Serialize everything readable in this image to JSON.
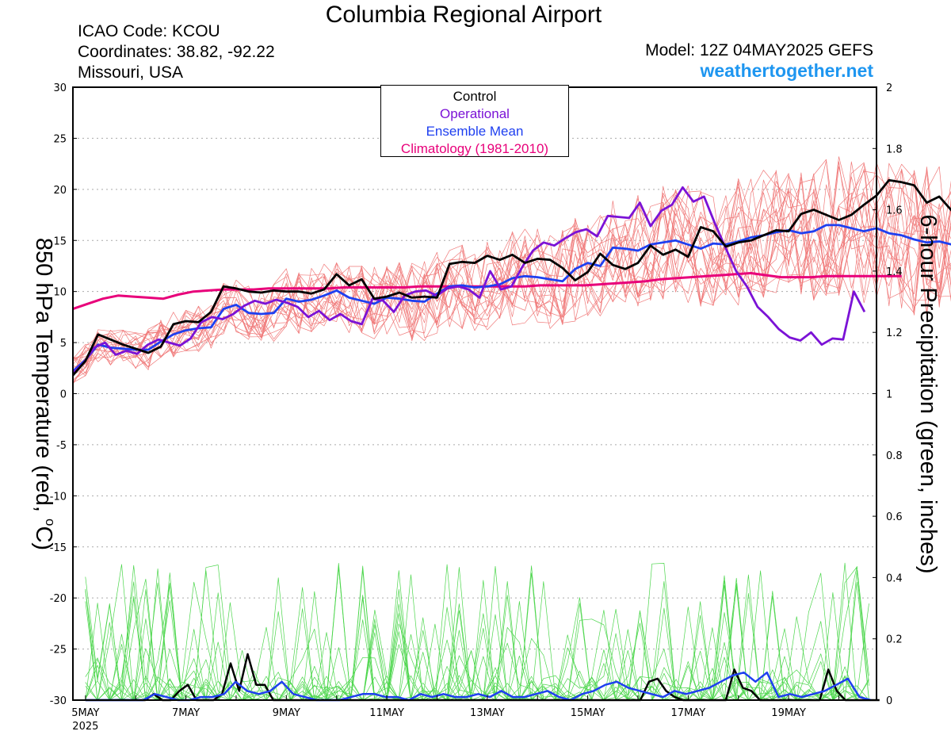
{
  "header": {
    "title": "Columbia Regional Airport",
    "icao": "ICAO Code: KCOU",
    "coords": "Coordinates: 38.82, -92.22",
    "region": "Missouri, USA",
    "model": "Model: 12Z 04MAY2025 GEFS",
    "site": "weathertogether.net"
  },
  "colors": {
    "control": "#000000",
    "operational": "#7b12d6",
    "ensemble_mean": "#1e3ff0",
    "climatology": "#e8007a",
    "members_temp": "#f07a7a",
    "members_precip": "#4cd64c",
    "site": "#1e96f0"
  },
  "chart_data": {
    "type": "line",
    "ylabel_left_prefix": "850 hPa Temperature (red, ",
    "ylabel_left_unit": "C)",
    "ylabel_left_deg": "o",
    "ylabel_right": "6-hour Precipitation (green, inches)",
    "ylim_left": [
      -30,
      30
    ],
    "ylim_right": [
      0,
      2
    ],
    "yticks_left": [
      "30",
      "25",
      "20",
      "15",
      "10",
      "5",
      "0",
      "-5",
      "-10",
      "-15",
      "-20",
      "-25",
      "-30"
    ],
    "yticks_right": [
      "2",
      "1.8",
      "1.6",
      "1.4",
      "1.2",
      "1",
      "0.8",
      "0.6",
      "0.4",
      "0.2",
      "0"
    ],
    "xlim_days": [
      4.75,
      20.75
    ],
    "xticks": [
      {
        "day": 5,
        "label": "5MAY",
        "sub": "2025"
      },
      {
        "day": 7,
        "label": "7MAY",
        "sub": ""
      },
      {
        "day": 9,
        "label": "9MAY",
        "sub": ""
      },
      {
        "day": 11,
        "label": "11MAY",
        "sub": ""
      },
      {
        "day": 13,
        "label": "13MAY",
        "sub": ""
      },
      {
        "day": 15,
        "label": "15MAY",
        "sub": ""
      },
      {
        "day": 17,
        "label": "17MAY",
        "sub": ""
      },
      {
        "day": 19,
        "label": "19MAY",
        "sub": ""
      }
    ],
    "legend": [
      {
        "name": "Control",
        "color": "#000000"
      },
      {
        "name": "Operational",
        "color": "#7b12d6"
      },
      {
        "name": "Ensemble Mean",
        "color": "#1e3ff0"
      },
      {
        "name": "Climatology (1981-2010)",
        "color": "#e8007a"
      }
    ],
    "x_start_day": 4.75,
    "x_step_days": 0.25,
    "temperature": {
      "control": [
        1.8,
        3.2,
        5.8,
        5.3,
        4.8,
        4.4,
        4.0,
        4.6,
        6.8,
        7.1,
        7.0,
        8.0,
        10.5,
        10.3,
        10.0,
        9.9,
        10.1,
        10.0,
        10.0,
        9.8,
        10.2,
        11.7,
        10.6,
        11.2,
        9.3,
        9.5,
        9.9,
        9.4,
        9.5,
        9.4,
        12.7,
        12.9,
        12.8,
        13.5,
        13.1,
        13.6,
        12.8,
        13.2,
        13.1,
        12.3,
        11.1,
        11.9,
        13.7,
        12.6,
        12.2,
        12.8,
        14.5,
        13.6,
        14.1,
        13.4,
        16.3,
        15.9,
        14.4,
        14.8,
        15.0,
        15.5,
        16.0,
        15.9,
        17.6,
        18.0,
        17.5,
        17.0,
        17.5,
        18.5,
        19.4,
        20.9,
        20.7,
        20.4,
        18.7,
        19.3,
        17.9
      ],
      "operational": [
        2.0,
        3.0,
        4.5,
        5.0,
        3.8,
        4.2,
        3.9,
        4.8,
        5.3,
        5.0,
        4.7,
        5.4,
        7.0,
        7.5,
        7.3,
        7.8,
        8.6,
        9.1,
        8.8,
        9.2,
        8.9,
        8.5,
        7.5,
        8.1,
        7.2,
        7.8,
        7.1,
        6.8,
        9.3,
        9.1,
        8.0,
        9.6,
        10.0,
        10.1,
        9.6,
        10.3,
        10.5,
        10.2,
        9.4,
        12.0,
        10.2,
        10.5,
        12.4,
        14.0,
        14.8,
        14.5,
        15.2,
        15.8,
        16.1,
        15.4,
        17.4,
        17.3,
        17.2,
        18.7,
        16.4,
        17.9,
        18.5,
        20.2,
        18.8,
        19.3,
        16.7,
        14.3,
        12.0,
        10.5,
        8.5,
        7.5,
        6.3,
        5.5,
        5.2,
        6.0,
        4.8,
        5.4,
        5.3,
        10.0,
        8.0
      ],
      "ensemble_mean": [
        2.2,
        3.3,
        4.8,
        4.5,
        4.4,
        4.3,
        4.3,
        5.1,
        5.8,
        6.2,
        6.4,
        6.5,
        8.3,
        8.7,
        7.9,
        7.8,
        7.9,
        9.3,
        9.0,
        9.2,
        9.6,
        10.1,
        9.4,
        9.1,
        8.8,
        9.4,
        9.3,
        9.1,
        9.0,
        9.8,
        10.5,
        10.6,
        10.4,
        10.5,
        10.7,
        11.3,
        11.5,
        11.4,
        11.2,
        11.0,
        12.2,
        12.8,
        12.5,
        14.3,
        14.2,
        14.0,
        14.6,
        14.8,
        15.0,
        14.6,
        14.2,
        14.7,
        14.6,
        14.9,
        15.3,
        15.5,
        15.8,
        16.0,
        15.7,
        15.9,
        16.5,
        16.5,
        16.2,
        15.9,
        16.2,
        15.7,
        15.5,
        15.1,
        14.8,
        14.9,
        14.6
      ],
      "climatology": [
        8.3,
        8.8,
        9.3,
        9.6,
        9.5,
        9.4,
        9.3,
        9.7,
        10.0,
        10.1,
        10.2,
        10.2,
        10.2,
        10.3,
        10.3,
        10.3,
        10.3,
        10.3,
        10.4,
        10.4,
        10.4,
        10.4,
        10.4,
        10.5,
        10.5,
        10.5,
        10.5,
        10.5,
        10.5,
        10.5,
        10.5,
        10.6,
        10.6,
        10.6,
        10.6,
        10.7,
        10.8,
        10.9,
        11.0,
        11.2,
        11.3,
        11.4,
        11.5,
        11.6,
        11.7,
        11.8,
        11.6,
        11.4,
        11.4,
        11.4,
        11.5,
        11.5,
        11.5,
        11.5,
        11.5,
        11.5
      ],
      "climatology_step_days": 0.3
    },
    "precipitation": {
      "control": [
        0,
        0,
        0,
        0,
        0,
        0,
        0,
        0,
        0.02,
        0,
        0,
        0.03,
        0.05,
        0,
        0,
        0,
        0.02,
        0.12,
        0.03,
        0.15,
        0.05,
        0.05,
        0,
        0,
        0,
        0,
        0,
        0,
        0,
        0,
        0,
        0,
        0,
        0,
        0,
        0,
        0,
        0,
        0,
        0,
        0,
        0,
        0,
        0,
        0,
        0,
        0,
        0,
        0,
        0,
        0,
        0,
        0,
        0,
        0,
        0,
        0,
        0,
        0,
        0,
        0,
        0,
        0,
        0,
        0,
        0,
        0.06,
        0.07,
        0.03,
        0.01,
        0,
        0,
        0,
        0,
        0,
        0,
        0.1,
        0.04,
        0.03,
        0,
        0,
        0,
        0,
        0,
        0,
        0,
        0,
        0.1,
        0.03,
        0,
        0,
        0,
        0,
        0
      ],
      "control_step_days": 0.17,
      "ensemble_mean": [
        0,
        0,
        0,
        0,
        0,
        0,
        0.02,
        0.01,
        0,
        0,
        0.01,
        0.01,
        0.02,
        0.06,
        0.03,
        0.02,
        0.03,
        0.06,
        0.02,
        0.01,
        0,
        0,
        0,
        0.01,
        0.02,
        0.02,
        0.01,
        0.01,
        0,
        0.02,
        0.01,
        0.02,
        0.01,
        0.01,
        0.02,
        0.01,
        0.03,
        0.01,
        0.01,
        0.02,
        0.03,
        0.01,
        0,
        0.02,
        0.03,
        0.05,
        0.06,
        0.04,
        0.03,
        0.02,
        0.01,
        0.03,
        0.02,
        0.03,
        0.04,
        0.06,
        0.08,
        0.09,
        0.06,
        0.09,
        0.01,
        0.02,
        0.01,
        0.02,
        0.03,
        0.05,
        0.07,
        0.01,
        0
      ],
      "ensemble_mean_step_days": 0.23
    }
  }
}
